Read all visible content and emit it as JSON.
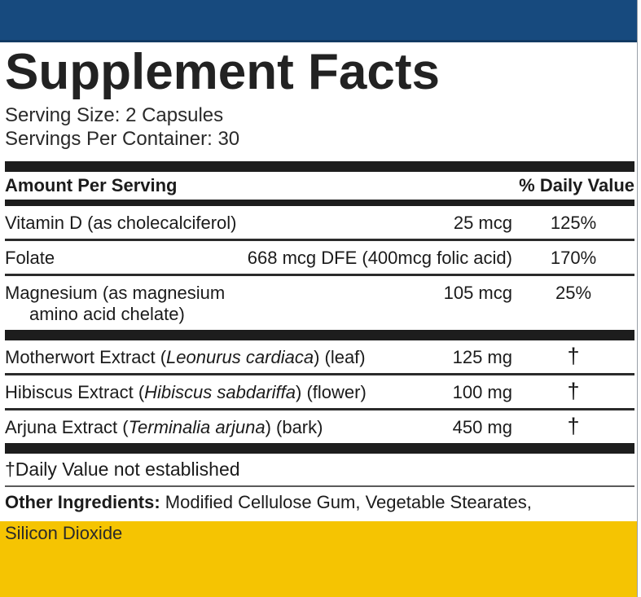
{
  "colors": {
    "navy_band": "#174a7e",
    "yellow_band": "#f5c402",
    "bar_black": "#1d1d1d"
  },
  "panel": {
    "title": "Supplement Facts",
    "serving_size": "Serving Size: 2 Capsules",
    "servings_per_container": "Servings Per Container: 30",
    "header": {
      "amount_per_serving": "Amount Per Serving",
      "daily_value": "% Daily Value"
    },
    "rows": [
      {
        "pre": "Vitamin D (as cholecalciferol)",
        "italic": "",
        "post": "",
        "amount": "25 mcg",
        "dv": "125%"
      },
      {
        "pre": "Folate",
        "italic": "",
        "post": "",
        "amount": "668 mcg DFE (400mcg folic acid)",
        "dv": "170%"
      },
      {
        "pre": "Magnesium (as magnesium\namino acid chelate)",
        "italic": "",
        "post": "",
        "amount": "105 mcg",
        "dv": "25%"
      },
      {
        "pre": "Motherwort Extract (",
        "italic": "Leonurus cardiaca",
        "post": ") (leaf)",
        "amount": "125 mg",
        "dv": "†"
      },
      {
        "pre": "Hibiscus Extract (",
        "italic": "Hibiscus sabdariffa",
        "post": ") (flower)",
        "amount": "100 mg",
        "dv": "†"
      },
      {
        "pre": "Arjuna Extract (",
        "italic": "Terminalia arjuna",
        "post": ") (bark)",
        "amount": "450 mg",
        "dv": "†"
      }
    ],
    "footnote": "†Daily Value not established",
    "other_ingredients": {
      "label": "Other Ingredients:",
      "rest": " Modified Cellulose Gum, Vegetable Stearates,",
      "overflow_line": "Silicon Dioxide"
    }
  }
}
